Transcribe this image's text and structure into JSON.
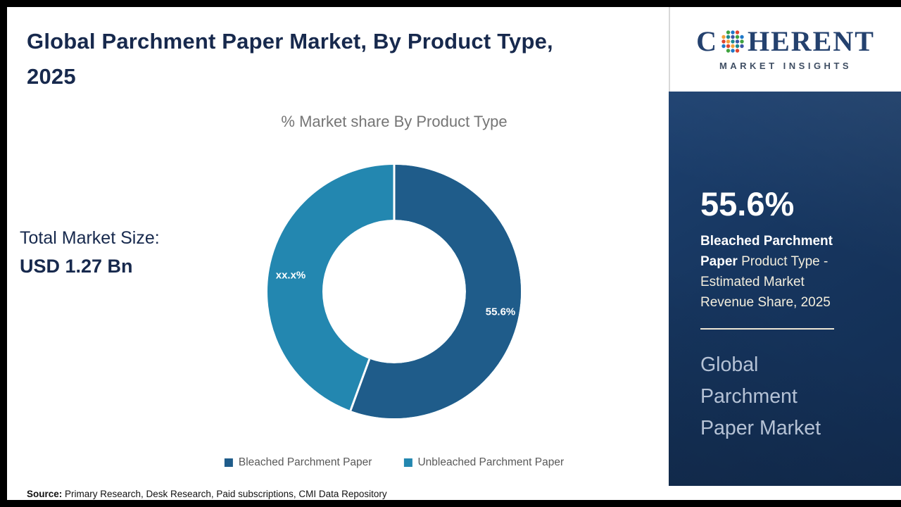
{
  "header": {
    "title": "Global Parchment Paper Market, By Product Type, 2025"
  },
  "market_size": {
    "label": "Total Market Size:",
    "value": "USD 1.27 Bn"
  },
  "chart_data": {
    "type": "pie",
    "subtype": "donut",
    "title": "% Market share By Product Type",
    "categories": [
      "Bleached Parchment Paper",
      "Unbleached Parchment Paper"
    ],
    "values": [
      55.6,
      44.4
    ],
    "slice_labels": [
      "55.6%",
      "xx.x%"
    ],
    "colors": [
      "#1f5c8a",
      "#2387b0"
    ],
    "legend_position": "bottom",
    "start_angle_deg": 0,
    "direction": "clockwise"
  },
  "legend": [
    {
      "label": "Bleached Parchment Paper",
      "color": "#1f5c8a"
    },
    {
      "label": "Unbleached Parchment Paper",
      "color": "#2387b0"
    }
  ],
  "source": {
    "label": "Source:",
    "text": " Primary Research, Desk Research, Paid subscriptions, CMI Data Repository"
  },
  "side_panel": {
    "stat_value": "55.6%",
    "description_bold": "Bleached Parchment Paper",
    "description_rest": " Product Type - Estimated Market Revenue Share, 2025",
    "market_name": "Global Parchment Paper Market",
    "background_color": "#16355e",
    "accent_text_color": "#f3eedd",
    "market_name_color": "#b5c2d5"
  },
  "logo": {
    "name_prefix": "C",
    "name_suffix": "HERENT",
    "tagline": "MARKET INSIGHTS"
  }
}
